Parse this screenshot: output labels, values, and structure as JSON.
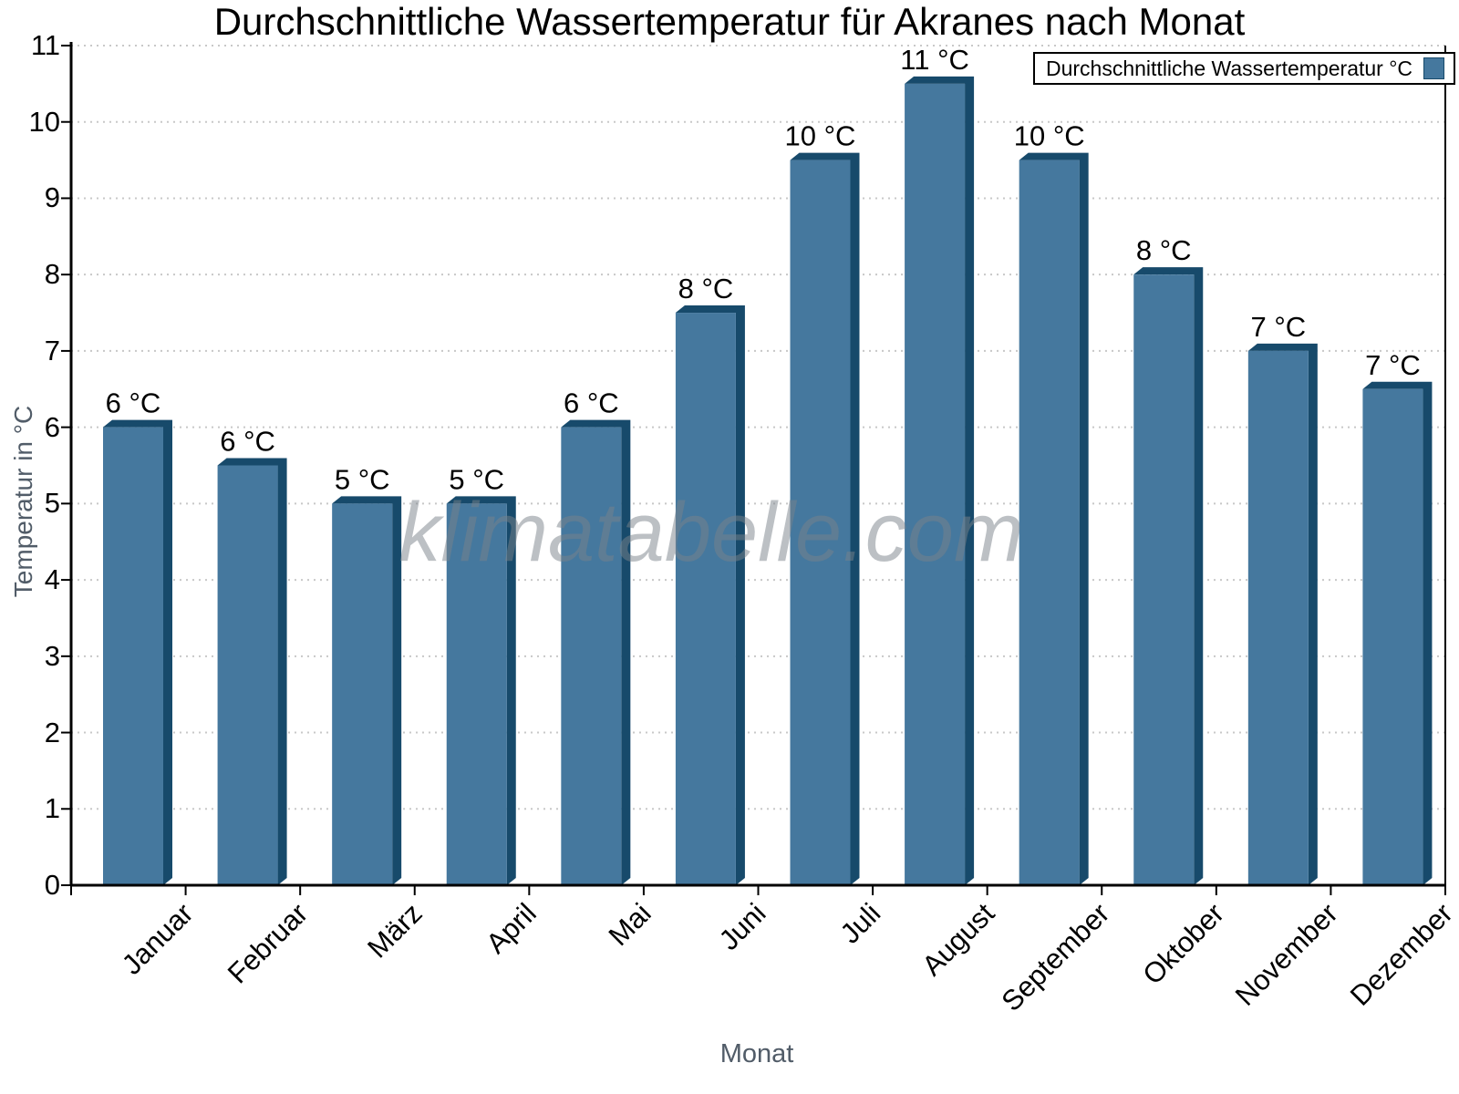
{
  "title": "Durchschnittliche Wassertemperatur für Akranes nach Monat",
  "watermark": "klimatabelle.com",
  "legend": {
    "label": "Durchschnittliche Wassertemperatur °C"
  },
  "chart_data": {
    "type": "bar",
    "title": "Durchschnittliche Wassertemperatur für Akranes nach Monat",
    "xlabel": "Monat",
    "ylabel": "Temperatur in °C",
    "categories": [
      "Januar",
      "Februar",
      "März",
      "April",
      "Mai",
      "Juni",
      "Juli",
      "August",
      "September",
      "Oktober",
      "November",
      "Dezember"
    ],
    "series": [
      {
        "name": "Durchschnittliche Wassertemperatur °C",
        "values": [
          6,
          5.5,
          5,
          5,
          6,
          7.5,
          9.5,
          10.5,
          9.5,
          8,
          7,
          6.5
        ],
        "data_labels": [
          "6 °C",
          "6 °C",
          "5 °C",
          "5 °C",
          "6 °C",
          "8 °C",
          "10 °C",
          "11 °C",
          "10 °C",
          "8 °C",
          "7 °C",
          "7 °C"
        ]
      }
    ],
    "ylim": [
      0,
      11
    ],
    "yticks": [
      0,
      1,
      2,
      3,
      4,
      5,
      6,
      7,
      8,
      9,
      10,
      11
    ],
    "grid": "horizontal-dotted",
    "legend_position": "top-right",
    "bar_style": "3d-extruded",
    "colors": {
      "bar_face": "#45789e",
      "bar_depth": "#174a6b",
      "grid": "#c8c8c8",
      "axis": "#000000",
      "axis_title_text": "#515c68",
      "watermark_text": "#7a8189"
    }
  }
}
